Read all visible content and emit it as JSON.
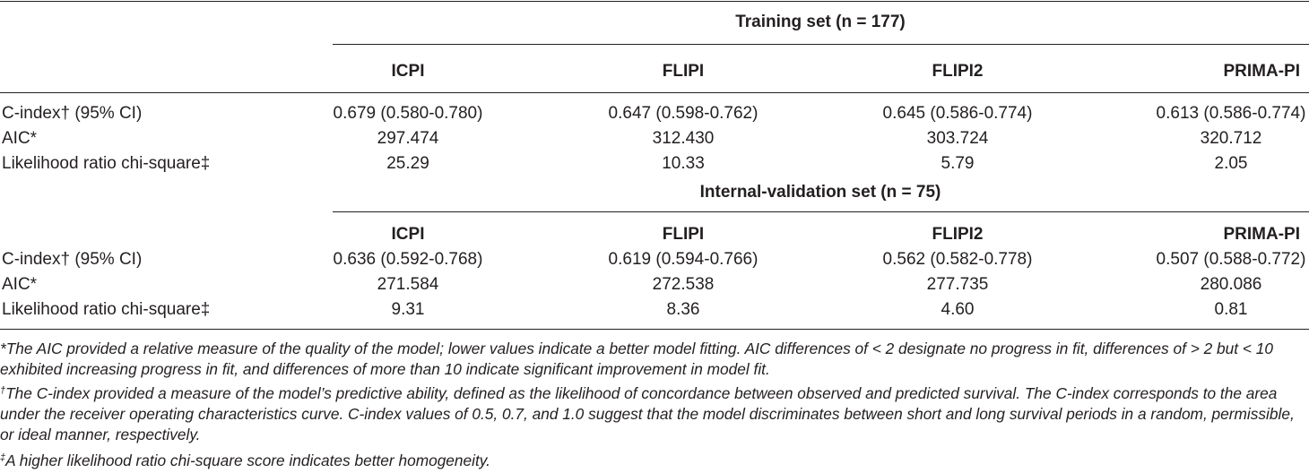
{
  "table": {
    "sections": [
      {
        "title": "Training set (n = 177)",
        "columns": [
          "ICPI",
          "FLIPI",
          "FLIPI2",
          "PRIMA-PI"
        ],
        "rows": [
          {
            "label": "C-index† (95% CI)",
            "values": [
              "0.679 (0.580-0.780)",
              "0.647 (0.598-0.762)",
              "0.645 (0.586-0.774)",
              "0.613 (0.586-0.774)"
            ]
          },
          {
            "label": "AIC*",
            "values": [
              "297.474",
              "312.430",
              "303.724",
              "320.712"
            ]
          },
          {
            "label": "Likelihood ratio chi-square‡",
            "values": [
              "25.29",
              "10.33",
              "5.79",
              "2.05"
            ]
          }
        ]
      },
      {
        "title": "Internal-validation set (n = 75)",
        "columns": [
          "ICPI",
          "FLIPI",
          "FLIPI2",
          "PRIMA-PI"
        ],
        "rows": [
          {
            "label": "C-index† (95% CI)",
            "values": [
              "0.636 (0.592-0.768)",
              "0.619 (0.594-0.766)",
              "0.562 (0.582-0.778)",
              "0.507 (0.588-0.772)"
            ]
          },
          {
            "label": "AIC*",
            "values": [
              "271.584",
              "272.538",
              "277.735",
              "280.086"
            ]
          },
          {
            "label": "Likelihood ratio chi-square‡",
            "values": [
              "9.31",
              "8.36",
              "4.60",
              "0.81"
            ]
          }
        ]
      }
    ]
  },
  "footnotes": [
    {
      "mark": "",
      "text": "*The AIC provided a relative measure of the quality of the model; lower values indicate a better model fitting. AIC differences of < 2 designate no progress in fit, differences of > 2 but < 10 exhibited increasing progress in fit, and differences of more than 10 indicate significant improvement in model fit."
    },
    {
      "mark": "†",
      "text": "The C-index provided a measure of the model’s predictive ability, defined as the likelihood of concordance between observed and predicted survival. The C-index corresponds to the area under the receiver operating characteristics curve. C-index values of 0.5, 0.7, and 1.0 suggest that the model discriminates between short and long survival periods in a random, permissible, or ideal manner, respectively."
    },
    {
      "mark": "‡",
      "text": "A higher likelihood ratio chi-square score indicates better homogeneity."
    }
  ]
}
